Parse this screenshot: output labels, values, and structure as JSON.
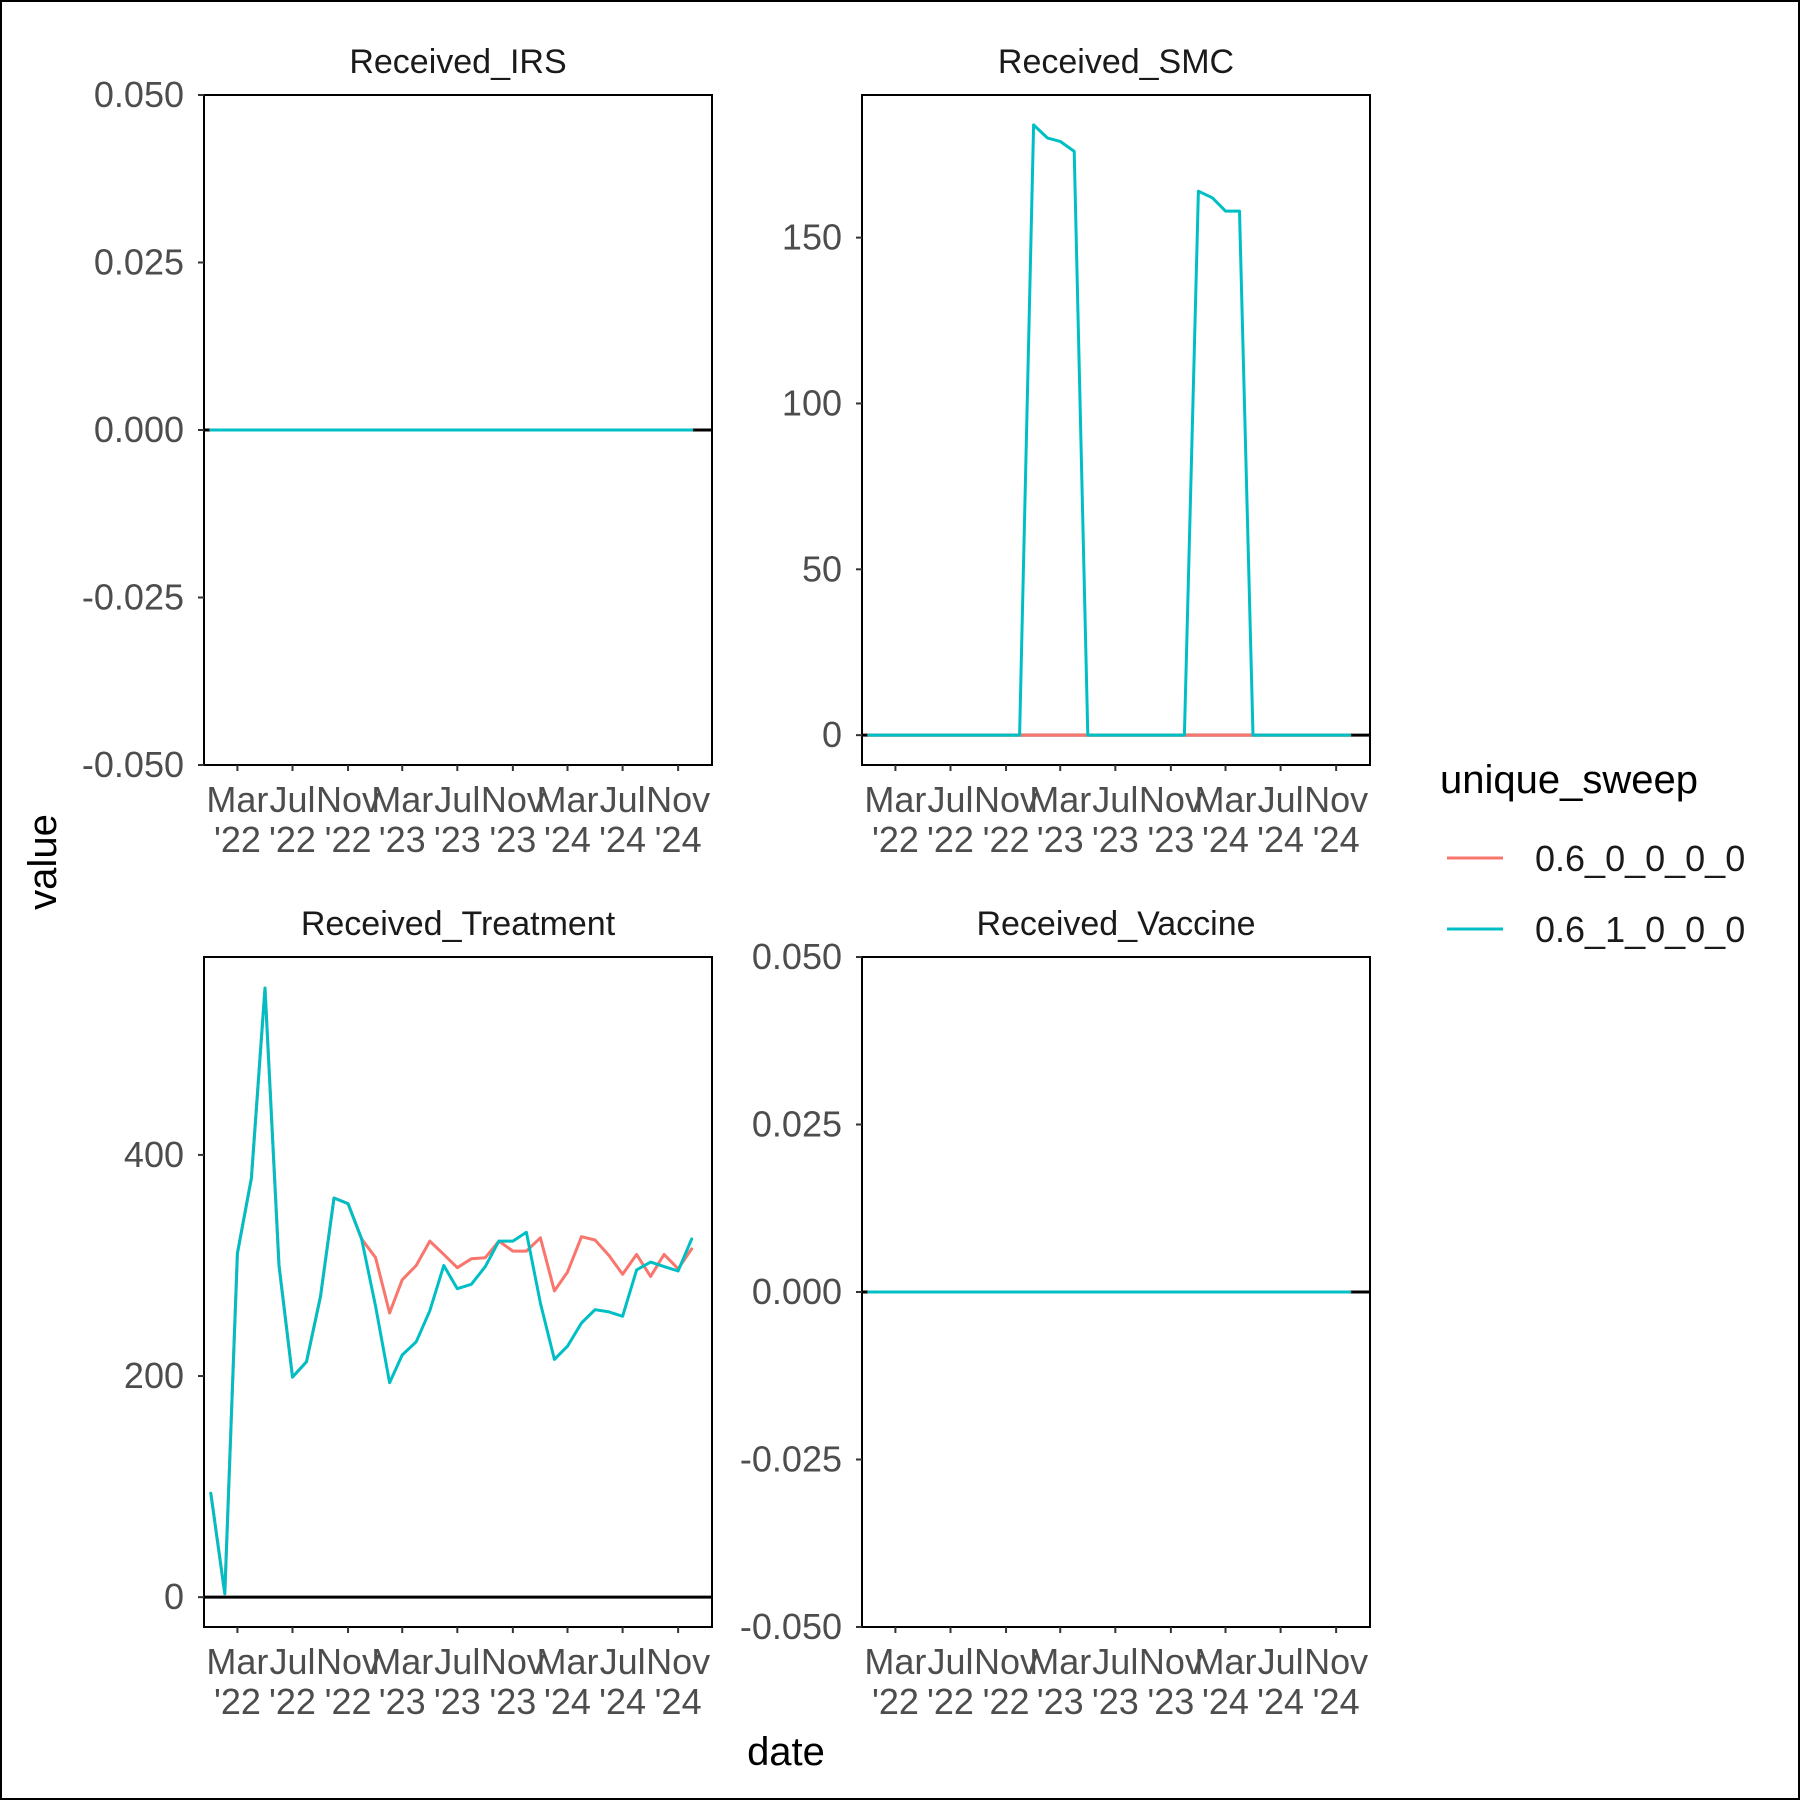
{
  "colors": {
    "series": [
      "#F8766D",
      "#00BFC4"
    ],
    "panel_border": "#000000",
    "zero_line": "#000000"
  },
  "chart_data": {
    "type": "line",
    "xlabel": "date",
    "ylabel": "value",
    "legend": {
      "title": "unique_sweep",
      "position": "right",
      "entries": [
        "0.6_0_0_0_0",
        "0.6_1_0_0_0"
      ]
    },
    "x_ticks": [
      {
        "date": "2022-03-01",
        "label": [
          "Mar",
          "'22"
        ]
      },
      {
        "date": "2022-07-01",
        "label": [
          "Jul",
          "'22"
        ]
      },
      {
        "date": "2022-11-01",
        "label": [
          "Nov",
          "'22"
        ]
      },
      {
        "date": "2023-03-01",
        "label": [
          "Mar",
          "'23"
        ]
      },
      {
        "date": "2023-07-01",
        "label": [
          "Jul",
          "'23"
        ]
      },
      {
        "date": "2023-11-01",
        "label": [
          "Nov",
          "'23"
        ]
      },
      {
        "date": "2024-03-01",
        "label": [
          "Mar",
          "'24"
        ]
      },
      {
        "date": "2024-07-01",
        "label": [
          "Jul",
          "'24"
        ]
      },
      {
        "date": "2024-11-01",
        "label": [
          "Nov",
          "'24"
        ]
      }
    ],
    "xlim": [
      "2021-12-17",
      "2025-01-15"
    ],
    "dates": [
      "2022-01-01",
      "2022-02-01",
      "2022-03-01",
      "2022-04-01",
      "2022-05-01",
      "2022-06-01",
      "2022-07-01",
      "2022-08-01",
      "2022-09-01",
      "2022-10-01",
      "2022-11-01",
      "2022-12-01",
      "2023-01-01",
      "2023-02-01",
      "2023-03-01",
      "2023-04-01",
      "2023-05-01",
      "2023-06-01",
      "2023-07-01",
      "2023-08-01",
      "2023-09-01",
      "2023-10-01",
      "2023-11-01",
      "2023-12-01",
      "2024-01-01",
      "2024-02-01",
      "2024-03-01",
      "2024-04-01",
      "2024-05-01",
      "2024-06-01",
      "2024-07-01",
      "2024-08-01",
      "2024-09-01",
      "2024-10-01",
      "2024-11-01",
      "2024-12-01"
    ],
    "panels": [
      {
        "title": "Received_IRS",
        "ylim": [
          -0.05,
          0.05
        ],
        "y_ticks": [
          {
            "value": 0.05,
            "label": "0.050"
          },
          {
            "value": 0.025,
            "label": "0.025"
          },
          {
            "value": 0,
            "label": "0.000"
          },
          {
            "value": -0.025,
            "label": "-0.025"
          },
          {
            "value": -0.05,
            "label": "-0.050"
          }
        ],
        "series": [
          {
            "name": "0.6_0_0_0_0",
            "values": [
              0,
              0,
              0,
              0,
              0,
              0,
              0,
              0,
              0,
              0,
              0,
              0,
              0,
              0,
              0,
              0,
              0,
              0,
              0,
              0,
              0,
              0,
              0,
              0,
              0,
              0,
              0,
              0,
              0,
              0,
              0,
              0,
              0,
              0,
              0,
              0
            ]
          },
          {
            "name": "0.6_1_0_0_0",
            "values": [
              0,
              0,
              0,
              0,
              0,
              0,
              0,
              0,
              0,
              0,
              0,
              0,
              0,
              0,
              0,
              0,
              0,
              0,
              0,
              0,
              0,
              0,
              0,
              0,
              0,
              0,
              0,
              0,
              0,
              0,
              0,
              0,
              0,
              0,
              0,
              0
            ]
          }
        ]
      },
      {
        "title": "Received_SMC",
        "ylim": [
          -9,
          193
        ],
        "y_ticks": [
          {
            "value": 150,
            "label": "150"
          },
          {
            "value": 100,
            "label": "100"
          },
          {
            "value": 50,
            "label": "50"
          },
          {
            "value": 0,
            "label": "0"
          }
        ],
        "series": [
          {
            "name": "0.6_0_0_0_0",
            "values": [
              0,
              0,
              0,
              0,
              0,
              0,
              0,
              0,
              0,
              0,
              0,
              0,
              0,
              0,
              0,
              0,
              0,
              0,
              0,
              0,
              0,
              0,
              0,
              0,
              0,
              0,
              0,
              0,
              0,
              0,
              0,
              0,
              0,
              0,
              0,
              0
            ]
          },
          {
            "name": "0.6_1_0_0_0",
            "values": [
              0,
              0,
              0,
              0,
              0,
              0,
              0,
              0,
              0,
              0,
              0,
              0,
              184,
              180,
              179,
              176,
              0,
              0,
              0,
              0,
              0,
              0,
              0,
              0,
              164,
              162,
              158,
              158,
              0,
              0,
              0,
              0,
              0,
              0,
              0,
              0
            ]
          }
        ]
      },
      {
        "title": "Received_Treatment",
        "ylim": [
          -27,
          579
        ],
        "y_ticks": [
          {
            "value": 400,
            "label": "400"
          },
          {
            "value": 200,
            "label": "200"
          },
          {
            "value": 0,
            "label": "0"
          }
        ],
        "series": [
          {
            "name": "0.6_0_0_0_0",
            "values": [
              94,
              3,
              311,
              379,
              551,
              300,
              199,
              213,
              272,
              361,
              356,
              324,
              307,
              257,
              287,
              300,
              322,
              310,
              298,
              306,
              307,
              322,
              313,
              313,
              325,
              277,
              294,
              326,
              323,
              309,
              292,
              310,
              290,
              310,
              297,
              315
            ]
          },
          {
            "name": "0.6_1_0_0_0",
            "values": [
              94,
              3,
              311,
              379,
              551,
              300,
              199,
              213,
              272,
              361,
              356,
              324,
              263,
              194,
              219,
              231,
              259,
              300,
              279,
              283,
              299,
              322,
              322,
              330,
              266,
              215,
              227,
              248,
              260,
              258,
              254,
              296,
              303,
              299,
              295,
              324
            ]
          }
        ]
      },
      {
        "title": "Received_Vaccine",
        "ylim": [
          -0.05,
          0.05
        ],
        "y_ticks": [
          {
            "value": 0.05,
            "label": "0.050"
          },
          {
            "value": 0.025,
            "label": "0.025"
          },
          {
            "value": 0,
            "label": "0.000"
          },
          {
            "value": -0.025,
            "label": "-0.025"
          },
          {
            "value": -0.05,
            "label": "-0.050"
          }
        ],
        "series": [
          {
            "name": "0.6_0_0_0_0",
            "values": [
              0,
              0,
              0,
              0,
              0,
              0,
              0,
              0,
              0,
              0,
              0,
              0,
              0,
              0,
              0,
              0,
              0,
              0,
              0,
              0,
              0,
              0,
              0,
              0,
              0,
              0,
              0,
              0,
              0,
              0,
              0,
              0,
              0,
              0,
              0,
              0
            ]
          },
          {
            "name": "0.6_1_0_0_0",
            "values": [
              0,
              0,
              0,
              0,
              0,
              0,
              0,
              0,
              0,
              0,
              0,
              0,
              0,
              0,
              0,
              0,
              0,
              0,
              0,
              0,
              0,
              0,
              0,
              0,
              0,
              0,
              0,
              0,
              0,
              0,
              0,
              0,
              0,
              0,
              0,
              0
            ]
          }
        ]
      }
    ]
  }
}
